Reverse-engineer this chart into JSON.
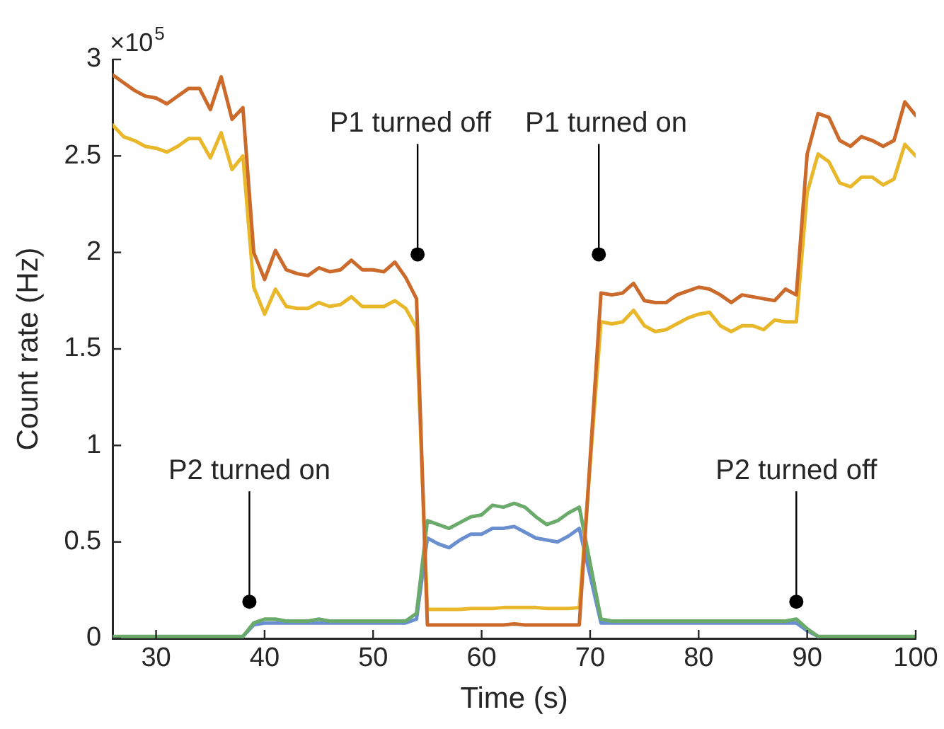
{
  "chart_data": {
    "type": "line",
    "xlabel": "Time (s)",
    "ylabel": "Count rate (Hz)",
    "x": [
      26,
      27,
      28,
      29,
      30,
      31,
      32,
      33,
      34,
      35,
      36,
      37,
      38,
      39,
      40,
      41,
      42,
      43,
      44,
      45,
      46,
      47,
      48,
      49,
      50,
      51,
      52,
      53,
      54,
      55,
      56,
      57,
      58,
      59,
      60,
      61,
      62,
      63,
      64,
      65,
      66,
      67,
      68,
      69,
      71,
      72,
      73,
      74,
      75,
      76,
      77,
      78,
      79,
      80,
      81,
      82,
      83,
      84,
      85,
      86,
      87,
      88,
      89,
      90,
      91,
      92,
      93,
      94,
      95,
      96,
      97,
      98,
      99,
      100
    ],
    "series": [
      {
        "color": "#6a8fd0",
        "values": [
          null,
          null,
          null,
          null,
          null,
          null,
          null,
          null,
          null,
          null,
          null,
          null,
          0.01,
          0.07,
          0.08,
          0.08,
          0.08,
          0.08,
          0.08,
          0.08,
          0.08,
          0.08,
          0.08,
          0.08,
          0.08,
          0.08,
          0.08,
          0.08,
          0.1,
          0.52,
          0.49,
          0.47,
          0.51,
          0.54,
          0.54,
          0.57,
          0.57,
          0.58,
          0.55,
          0.52,
          0.51,
          0.5,
          0.53,
          0.57,
          0.08,
          0.08,
          0.08,
          0.08,
          0.08,
          0.08,
          0.08,
          0.08,
          0.08,
          0.08,
          0.08,
          0.08,
          0.08,
          0.08,
          0.08,
          0.08,
          0.08,
          0.08,
          0.08,
          0.04,
          0.01,
          null,
          null,
          null,
          null,
          null,
          null,
          null,
          null,
          null
        ]
      },
      {
        "color": "#6aaa6a",
        "values": [
          0.01,
          0.01,
          0.01,
          0.01,
          0.01,
          0.01,
          0.01,
          0.01,
          0.01,
          0.01,
          0.01,
          0.01,
          0.01,
          0.08,
          0.1,
          0.1,
          0.09,
          0.09,
          0.09,
          0.1,
          0.09,
          0.09,
          0.09,
          0.09,
          0.09,
          0.09,
          0.09,
          0.09,
          0.13,
          0.61,
          0.59,
          0.57,
          0.6,
          0.63,
          0.64,
          0.69,
          0.68,
          0.7,
          0.68,
          0.63,
          0.59,
          0.61,
          0.65,
          0.68,
          0.1,
          0.09,
          0.09,
          0.09,
          0.09,
          0.09,
          0.09,
          0.09,
          0.09,
          0.09,
          0.09,
          0.09,
          0.09,
          0.09,
          0.09,
          0.09,
          0.09,
          0.09,
          0.1,
          0.05,
          0.01,
          0.01,
          0.01,
          0.01,
          0.01,
          0.01,
          0.01,
          0.01,
          0.01,
          0.01
        ]
      },
      {
        "color": "#e8b82a",
        "values": [
          2.66,
          2.6,
          2.58,
          2.55,
          2.54,
          2.52,
          2.55,
          2.59,
          2.59,
          2.49,
          2.62,
          2.43,
          2.5,
          1.82,
          1.68,
          1.81,
          1.72,
          1.71,
          1.71,
          1.74,
          1.72,
          1.73,
          1.77,
          1.72,
          1.72,
          1.72,
          1.75,
          1.71,
          1.61,
          0.15,
          0.15,
          0.15,
          0.15,
          0.155,
          0.155,
          0.155,
          0.16,
          0.16,
          0.16,
          0.16,
          0.155,
          0.155,
          0.155,
          0.16,
          1.64,
          1.63,
          1.64,
          1.7,
          1.62,
          1.59,
          1.6,
          1.63,
          1.66,
          1.68,
          1.69,
          1.62,
          1.59,
          1.62,
          1.62,
          1.6,
          1.65,
          1.64,
          1.64,
          2.31,
          2.51,
          2.47,
          2.36,
          2.34,
          2.39,
          2.39,
          2.35,
          2.38,
          2.56,
          2.5
        ]
      },
      {
        "color": "#cc6a2c",
        "values": [
          2.92,
          2.88,
          2.84,
          2.81,
          2.8,
          2.77,
          2.81,
          2.85,
          2.85,
          2.74,
          2.91,
          2.69,
          2.75,
          2.0,
          1.86,
          2.01,
          1.91,
          1.89,
          1.88,
          1.92,
          1.9,
          1.91,
          1.96,
          1.91,
          1.91,
          1.9,
          1.95,
          1.87,
          1.76,
          0.07,
          0.07,
          0.07,
          0.07,
          0.07,
          0.07,
          0.07,
          0.07,
          0.075,
          0.07,
          0.07,
          0.07,
          0.07,
          0.07,
          0.07,
          1.79,
          1.78,
          1.79,
          1.84,
          1.75,
          1.74,
          1.74,
          1.78,
          1.8,
          1.82,
          1.81,
          1.78,
          1.74,
          1.78,
          1.77,
          1.76,
          1.75,
          1.81,
          1.78,
          2.51,
          2.72,
          2.7,
          2.58,
          2.55,
          2.6,
          2.58,
          2.55,
          2.58,
          2.78,
          2.71
        ]
      }
    ],
    "xlim": [
      26,
      100
    ],
    "xticks": [
      30,
      40,
      50,
      60,
      70,
      80,
      90,
      100
    ],
    "ylim": [
      0,
      3
    ],
    "yticks": [
      0,
      0.5,
      1,
      1.5,
      2,
      2.5,
      3
    ],
    "annotations": [
      "×10$^{5}$",
      {
        "text": "P1 turned off",
        "x": 54.1,
        "y": 1.99
      },
      {
        "text": "P1 turned on",
        "x": 70.8,
        "y": 1.99
      },
      {
        "text": "P2 turned on",
        "x": 38.6,
        "y": 0.19
      },
      {
        "text": "P2 turned off",
        "x": 89,
        "y": 0.19
      }
    ]
  }
}
